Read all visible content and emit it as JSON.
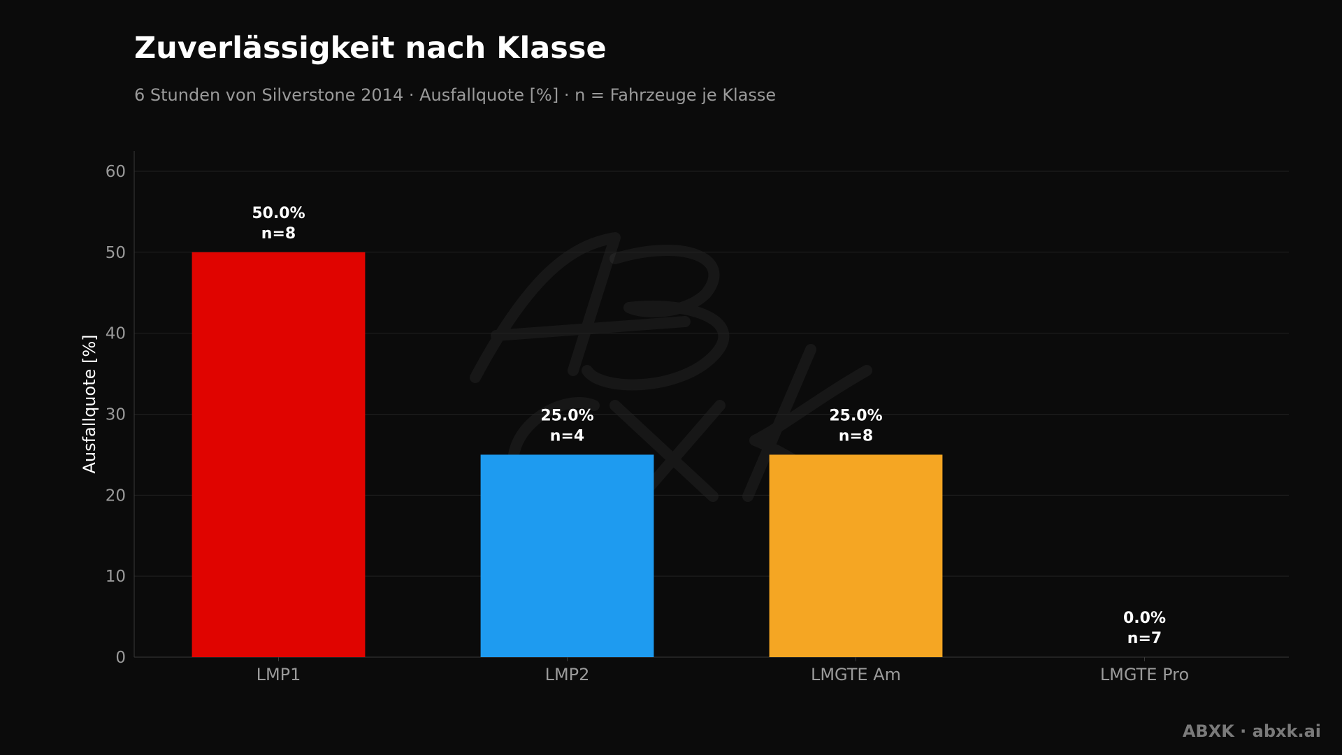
{
  "header": {
    "title": "Zuverlässigkeit nach Klasse",
    "subtitle": "6 Stunden von Silverstone 2014 · Ausfallquote [%] · n = Fahrzeuge je Klasse"
  },
  "footer": {
    "credit": "ABXK · abxk.ai"
  },
  "watermark": {
    "text": "ABXK"
  },
  "colors": {
    "background": "#0b0b0b",
    "grid": "#222222",
    "axis": "#3a3a3a"
  },
  "chart_data": {
    "type": "bar",
    "categories": [
      "LMP1",
      "LMP2",
      "LMGTE Am",
      "LMGTE Pro"
    ],
    "values": [
      50.0,
      25.0,
      25.0,
      0.0
    ],
    "n": [
      8,
      4,
      8,
      7
    ],
    "value_labels": [
      "50.0%",
      "25.0%",
      "25.0%",
      "0.0%"
    ],
    "n_labels": [
      "n=8",
      "n=4",
      "n=8",
      "n=7"
    ],
    "colors": [
      "#e00400",
      "#1e9bf0",
      "#f5a623",
      "#2ecc40"
    ],
    "title": "Zuverlässigkeit nach Klasse",
    "xlabel": "",
    "ylabel": "Ausfallquote [%]",
    "ylim": [
      0,
      62.5
    ],
    "yticks": [
      0,
      10,
      20,
      30,
      40,
      50,
      60
    ],
    "grid": true,
    "legend": "none"
  }
}
